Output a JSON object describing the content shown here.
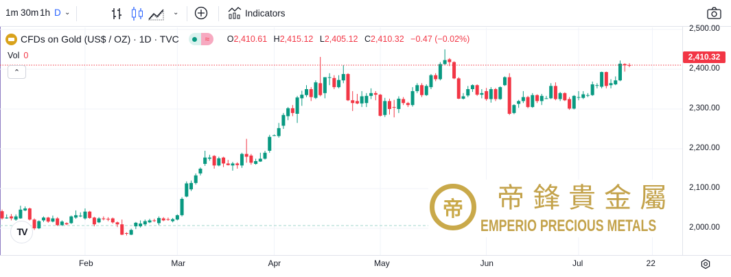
{
  "toolbar": {
    "intervals": [
      "1m",
      "30m",
      "1h",
      "D"
    ],
    "indicators_label": "Indicators"
  },
  "legend": {
    "title": "CFDs on Gold (US$ / OZ) · 1D · TVC",
    "o_label": "O",
    "o": "2,410.61",
    "h_label": "H",
    "h": "2,415.12",
    "l_label": "L",
    "l": "2,405.12",
    "c_label": "C",
    "c": "2,410.32",
    "change": "−0.47 (−0.02%)",
    "vol_label": "Vol",
    "vol": "0"
  },
  "watermark": {
    "cn": "帝鋒貴金屬",
    "en": "EMPERIO PRECIOUS METALS"
  },
  "colors": {
    "up": "#089981",
    "down": "#f23645",
    "grid": "#f0f3fa"
  },
  "chart_data": {
    "type": "candlestick",
    "title": "CFDs on Gold (US$ / OZ) · 1D · TVC",
    "ylim": [
      1920,
      2505
    ],
    "y_ticks": [
      "2,500.00",
      "2,400.00",
      "2,300.00",
      "2,200.00",
      "2,100.00",
      "2,000.00"
    ],
    "y_tick_values": [
      2500,
      2400,
      2300,
      2200,
      2100,
      2000
    ],
    "x_ticks": [
      "Feb",
      "Mar",
      "Apr",
      "May",
      "Jun",
      "Jul",
      "22"
    ],
    "x_tick_index": [
      18,
      38,
      59,
      82,
      105,
      125,
      141
    ],
    "last_price": "2,410.32",
    "last_value": 2410.32,
    "candles_ohlc": [
      [
        2043,
        2047,
        2022,
        2025
      ],
      [
        2025,
        2035,
        2024,
        2027
      ],
      [
        2030,
        2036,
        2020,
        2025
      ],
      [
        2022,
        2035,
        2019,
        2030
      ],
      [
        2025,
        2057,
        2024,
        2047
      ],
      [
        2045,
        2055,
        2043,
        2050
      ],
      [
        2050,
        2052,
        2020,
        2022
      ],
      [
        2022,
        2025,
        1996,
        2000
      ],
      [
        2000,
        2020,
        1998,
        2018
      ],
      [
        2020,
        2030,
        2016,
        2027
      ],
      [
        2027,
        2029,
        2014,
        2017
      ],
      [
        2017,
        2032,
        2015,
        2025
      ],
      [
        2025,
        2028,
        2006,
        2008
      ],
      [
        2008,
        2020,
        2006,
        2017
      ],
      [
        2013,
        2015,
        2008,
        2010
      ],
      [
        2013,
        2032,
        2011,
        2030
      ],
      [
        2027,
        2045,
        2024,
        2033
      ],
      [
        2030,
        2040,
        2028,
        2032
      ],
      [
        2025,
        2050,
        2022,
        2042
      ],
      [
        2042,
        2044,
        2024,
        2026
      ],
      [
        2027,
        2029,
        2005,
        2010
      ],
      [
        2015,
        2028,
        2013,
        2025
      ],
      [
        2025,
        2030,
        2020,
        2023
      ],
      [
        2024,
        2028,
        2018,
        2022
      ],
      [
        2025,
        2027,
        2012,
        2015
      ],
      [
        2015,
        2017,
        2003,
        2010
      ],
      [
        2010,
        2022,
        1983,
        1984
      ],
      [
        1988,
        1990,
        1982,
        1987
      ],
      [
        1984,
        1999,
        1983,
        1996
      ],
      [
        2005,
        2016,
        1998,
        2014
      ],
      [
        2005,
        2020,
        2002,
        2012
      ],
      [
        2010,
        2022,
        2006,
        2018
      ],
      [
        2015,
        2024,
        2013,
        2020
      ],
      [
        2020,
        2024,
        2016,
        2019
      ],
      [
        2013,
        2030,
        2008,
        2026
      ],
      [
        2025,
        2028,
        2018,
        2020
      ],
      [
        2023,
        2027,
        2019,
        2022
      ],
      [
        2018,
        2026,
        2015,
        2023
      ],
      [
        2022,
        2035,
        2020,
        2033
      ],
      [
        2033,
        2078,
        2030,
        2074
      ],
      [
        2080,
        2118,
        2078,
        2113
      ],
      [
        2098,
        2120,
        2094,
        2114
      ],
      [
        2114,
        2138,
        2110,
        2133
      ],
      [
        2138,
        2153,
        2133,
        2150
      ],
      [
        2162,
        2195,
        2157,
        2178
      ],
      [
        2175,
        2185,
        2170,
        2178
      ],
      [
        2182,
        2184,
        2150,
        2158
      ],
      [
        2158,
        2180,
        2156,
        2176
      ],
      [
        2178,
        2180,
        2154,
        2163
      ],
      [
        2163,
        2172,
        2158,
        2159
      ],
      [
        2158,
        2167,
        2145,
        2163
      ],
      [
        2163,
        2166,
        2150,
        2159
      ],
      [
        2158,
        2190,
        2152,
        2187
      ],
      [
        2187,
        2225,
        2165,
        2180
      ],
      [
        2183,
        2187,
        2160,
        2165
      ],
      [
        2162,
        2175,
        2160,
        2169
      ],
      [
        2168,
        2190,
        2167,
        2175
      ],
      [
        2175,
        2195,
        2173,
        2190
      ],
      [
        2195,
        2235,
        2190,
        2230
      ],
      [
        2234,
        2236,
        2232,
        2234
      ],
      [
        2232,
        2265,
        2228,
        2252
      ],
      [
        2258,
        2290,
        2250,
        2285
      ],
      [
        2282,
        2305,
        2272,
        2302
      ],
      [
        2302,
        2310,
        2282,
        2290
      ],
      [
        2288,
        2333,
        2265,
        2329
      ],
      [
        2327,
        2346,
        2308,
        2336
      ],
      [
        2335,
        2360,
        2330,
        2350
      ],
      [
        2350,
        2355,
        2320,
        2330
      ],
      [
        2328,
        2372,
        2325,
        2367
      ],
      [
        2365,
        2431,
        2332,
        2335
      ],
      [
        2340,
        2380,
        2327,
        2380
      ],
      [
        2380,
        2390,
        2360,
        2380
      ],
      [
        2378,
        2385,
        2350,
        2355
      ],
      [
        2355,
        2385,
        2352,
        2373
      ],
      [
        2372,
        2410,
        2365,
        2388
      ],
      [
        2388,
        2390,
        2320,
        2322
      ],
      [
        2322,
        2345,
        2295,
        2315
      ],
      [
        2320,
        2338,
        2312,
        2314
      ],
      [
        2314,
        2345,
        2305,
        2332
      ],
      [
        2315,
        2340,
        2305,
        2333
      ],
      [
        2333,
        2352,
        2325,
        2340
      ],
      [
        2340,
        2345,
        2322,
        2336
      ],
      [
        2336,
        2338,
        2281,
        2283
      ],
      [
        2285,
        2328,
        2280,
        2320
      ],
      [
        2320,
        2326,
        2286,
        2300
      ],
      [
        2305,
        2323,
        2279,
        2304
      ],
      [
        2300,
        2332,
        2290,
        2326
      ],
      [
        2325,
        2330,
        2310,
        2315
      ],
      [
        2315,
        2318,
        2305,
        2310
      ],
      [
        2310,
        2355,
        2306,
        2345
      ],
      [
        2345,
        2365,
        2340,
        2360
      ],
      [
        2360,
        2365,
        2330,
        2335
      ],
      [
        2335,
        2362,
        2333,
        2358
      ],
      [
        2355,
        2388,
        2350,
        2385
      ],
      [
        2385,
        2390,
        2370,
        2375
      ],
      [
        2375,
        2418,
        2372,
        2413
      ],
      [
        2413,
        2450,
        2410,
        2423
      ],
      [
        2425,
        2428,
        2408,
        2418
      ],
      [
        2418,
        2420,
        2375,
        2377
      ],
      [
        2377,
        2380,
        2325,
        2326
      ],
      [
        2326,
        2340,
        2324,
        2332
      ],
      [
        2334,
        2358,
        2330,
        2350
      ],
      [
        2350,
        2362,
        2343,
        2360
      ],
      [
        2360,
        2362,
        2333,
        2336
      ],
      [
        2336,
        2350,
        2327,
        2340
      ],
      [
        2345,
        2353,
        2321,
        2325
      ],
      [
        2325,
        2355,
        2316,
        2350
      ],
      [
        2350,
        2353,
        2320,
        2325
      ],
      [
        2325,
        2357,
        2323,
        2355
      ],
      [
        2360,
        2382,
        2358,
        2380
      ],
      [
        2380,
        2390,
        2285,
        2288
      ],
      [
        2290,
        2312,
        2287,
        2310
      ],
      [
        2313,
        2323,
        2303,
        2320
      ],
      [
        2320,
        2345,
        2315,
        2330
      ],
      [
        2330,
        2333,
        2302,
        2305
      ],
      [
        2305,
        2340,
        2303,
        2335
      ],
      [
        2335,
        2337,
        2315,
        2320
      ],
      [
        2320,
        2338,
        2310,
        2333
      ],
      [
        2327,
        2333,
        2325,
        2327
      ],
      [
        2327,
        2365,
        2325,
        2358
      ],
      [
        2358,
        2367,
        2322,
        2325
      ],
      [
        2325,
        2343,
        2320,
        2340
      ],
      [
        2340,
        2342,
        2320,
        2322
      ],
      [
        2325,
        2330,
        2298,
        2301
      ],
      [
        2301,
        2335,
        2299,
        2333
      ],
      [
        2330,
        2345,
        2322,
        2330
      ],
      [
        2328,
        2345,
        2325,
        2337
      ],
      [
        2335,
        2340,
        2330,
        2335
      ],
      [
        2335,
        2369,
        2333,
        2362
      ],
      [
        2360,
        2365,
        2352,
        2360
      ],
      [
        2356,
        2394,
        2352,
        2393
      ],
      [
        2393,
        2394,
        2352,
        2358
      ],
      [
        2360,
        2375,
        2352,
        2365
      ],
      [
        2362,
        2382,
        2360,
        2372
      ],
      [
        2372,
        2422,
        2370,
        2414
      ],
      [
        2413,
        2415,
        2394,
        2410
      ],
      [
        2410.61,
        2415.12,
        2405.12,
        2410.32
      ]
    ]
  }
}
